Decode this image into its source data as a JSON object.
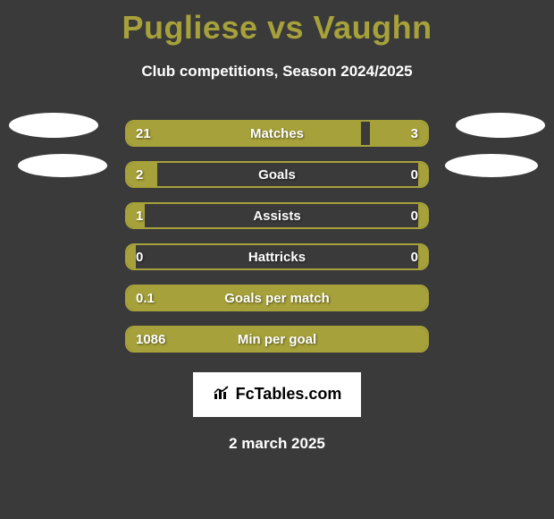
{
  "colors": {
    "background": "#3a3a3a",
    "accent": "#a6a13a",
    "text": "#ffffff",
    "logo_bg": "#ffffff",
    "logo_text": "#000000"
  },
  "title": "Pugliese vs Vaughn",
  "subtitle": "Club competitions, Season 2024/2025",
  "logo_text": "FcTables.com",
  "date": "2 march 2025",
  "rows": [
    {
      "label": "Matches",
      "left": "21",
      "right": "3",
      "fillLeftPct": 78,
      "fillRightPct": 19
    },
    {
      "label": "Goals",
      "left": "2",
      "right": "0",
      "fillLeftPct": 10,
      "fillRightPct": 3
    },
    {
      "label": "Assists",
      "left": "1",
      "right": "0",
      "fillLeftPct": 6,
      "fillRightPct": 3
    },
    {
      "label": "Hattricks",
      "left": "0",
      "right": "0",
      "fillLeftPct": 3,
      "fillRightPct": 3
    },
    {
      "label": "Goals per match",
      "left": "0.1",
      "right": "",
      "fillLeftPct": 100,
      "fillRightPct": 0
    },
    {
      "label": "Min per goal",
      "left": "1086",
      "right": "",
      "fillLeftPct": 100,
      "fillRightPct": 0
    }
  ]
}
